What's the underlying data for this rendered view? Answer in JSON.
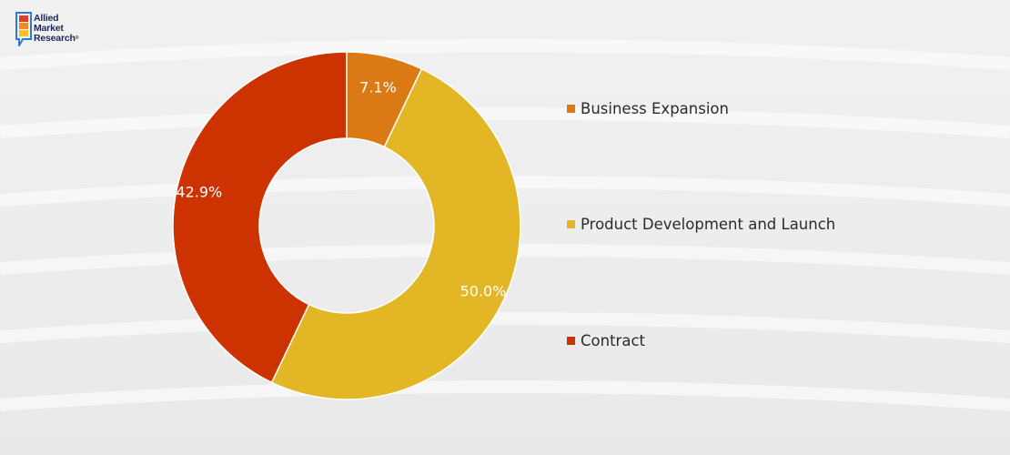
{
  "brand": {
    "logo_lines": [
      "Allied",
      "Market",
      "Research"
    ],
    "registered_mark": "®",
    "colors": {
      "red": "#e23b2a",
      "orange": "#f08a24",
      "yellow": "#f7c21b",
      "blue": "#2b7bd6",
      "navy": "#1b2a55"
    }
  },
  "chart_data": {
    "type": "pie",
    "donut": true,
    "title": "",
    "categories": [
      "Business Expansion",
      "Product Development and Launch",
      "Contract"
    ],
    "values": [
      7.1,
      50.0,
      42.9
    ],
    "labels": [
      "7.1%",
      "50.0%",
      "42.9%"
    ],
    "colors": [
      "#db7a14",
      "#e2b624",
      "#cc3300"
    ],
    "start_angle_deg": 0,
    "direction": "clockwise",
    "legend_position": "right"
  }
}
